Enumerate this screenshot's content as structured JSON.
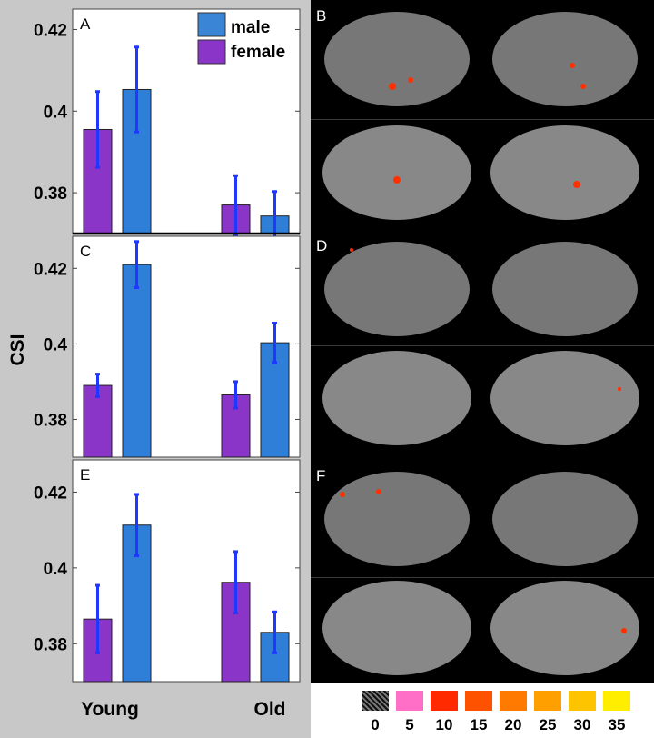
{
  "chart_data": [
    {
      "panel": "A",
      "type": "bar",
      "categories": [
        "Young",
        "Old"
      ],
      "series": [
        {
          "name": "female",
          "values": [
            0.3955,
            0.377
          ],
          "err": [
            0.0093,
            0.0072
          ]
        },
        {
          "name": "male",
          "values": [
            0.4053,
            0.3743
          ],
          "err": [
            0.0104,
            0.006
          ]
        }
      ],
      "yticks": [
        "0.42",
        "0.4",
        "0.38"
      ],
      "ylim": [
        0.37,
        0.425
      ]
    },
    {
      "panel": "C",
      "type": "bar",
      "categories": [
        "Young",
        "Old"
      ],
      "series": [
        {
          "name": "female",
          "values": [
            0.389,
            0.3865
          ],
          "err": [
            0.003,
            0.0035
          ]
        },
        {
          "name": "male",
          "values": [
            0.421,
            0.4003
          ],
          "err": [
            0.0061,
            0.0052
          ]
        }
      ],
      "yticks": [
        "0.42",
        "0.4",
        "0.38"
      ],
      "ylim": [
        0.37,
        0.4285
      ]
    },
    {
      "panel": "E",
      "type": "bar",
      "categories": [
        "Young",
        "Old"
      ],
      "series": [
        {
          "name": "female",
          "values": [
            0.3865,
            0.3962
          ],
          "err": [
            0.0089,
            0.0081
          ]
        },
        {
          "name": "male",
          "values": [
            0.4113,
            0.383
          ],
          "err": [
            0.0081,
            0.0054
          ]
        }
      ],
      "yticks": [
        "0.42",
        "0.4",
        "0.38"
      ],
      "ylim": [
        0.37,
        0.4285
      ]
    }
  ],
  "ylabel": "CSI",
  "xlabels": [
    "Young",
    "Old"
  ],
  "legend": {
    "items": [
      {
        "label": "male",
        "color": "#3a85d6"
      },
      {
        "label": "female",
        "color": "#8a34c8"
      }
    ]
  },
  "colors": {
    "female": "#8a34c8",
    "male": "#2f7fd9",
    "error": "#1f37ff"
  },
  "brain_panels": [
    "B",
    "D",
    "F"
  ],
  "color_scale": {
    "labels": [
      "0",
      "5",
      "10",
      "15",
      "20",
      "25",
      "30",
      "35"
    ],
    "colors": [
      "#2a2a2a",
      "#ff6ec7",
      "#ff2a00",
      "#ff5200",
      "#ff7a00",
      "#ffa000",
      "#ffc400",
      "#ffee00"
    ]
  }
}
